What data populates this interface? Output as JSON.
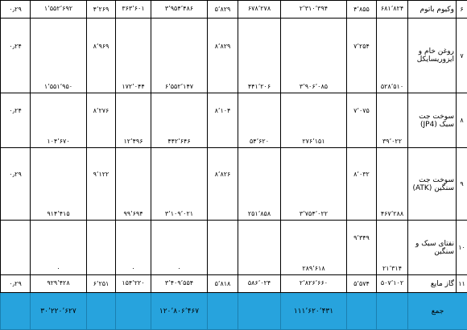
{
  "table": {
    "rows": [
      {
        "number": "۶",
        "name": "وکیوم باتوم",
        "cells": [
          "۶۸۱٬۸۲۴",
          "۴٬۸۵۵",
          "۲٬۳۱۰٬۳۹۴",
          "۶۷۸٬۲۷۸",
          "۵٬۸۲۹",
          "۳٬۹۵۴٬۴۸۶",
          "۳۶۳٬۶۰۱",
          "۴٬۲۶۹",
          "۱٬۵۵۲٬۶۹۲",
          "۰٫۲۹"
        ]
      },
      {
        "number": "۷",
        "name": "روغن خام و ایزوریسایکل",
        "cells": [
          "۵۲۸٬۵۱۰",
          "۷٬۲۵۴",
          "۳٬۹۰۶٬۰۸۵",
          "۴۴۱٬۲۰۶",
          "۸٬۸۲۹",
          "۶٬۵۵۲٬۱۴۷",
          "۱۷۲٬۰۴۴",
          "۸٬۹۶۹",
          "۱٬۵۵۱٬۹۵۰",
          "۰٫۲۴"
        ]
      },
      {
        "number": "۸",
        "name": "سوخت جت سبک (JP4)",
        "cells": [
          "۳۹٬۰۲۲",
          "۷٬۰۷۵",
          "۲۷۶٬۱۵۱",
          "۵۴٬۶۲۰",
          "۸٬۱۰۴",
          "۴۴۲٬۶۴۶",
          "۱۲٬۴۹۶",
          "۸٬۲۷۶",
          "۱۰۴٬۶۷۰",
          "۰٫۲۴"
        ]
      },
      {
        "number": "۹",
        "name": "سوخت جت سنگین (ATK)",
        "cells": [
          "۴۶۷٬۲۸۸",
          "۸٬۰۳۲",
          "۳٬۷۵۴٬۰۲۲",
          "۲۵۱٬۸۵۸",
          "۸٬۸۲۶",
          "۳٬۱۰۹٬۰۲۱",
          "۹۹٬۶۹۴",
          "۹٬۱۲۲",
          "۹۱۴٬۴۱۵",
          "۰٫۲۹"
        ]
      },
      {
        "number": "۱۰",
        "name": "نفتای سبک و سنگین",
        "cells": [
          "۲۱٬۳۱۴",
          "۹٬۳۴۹",
          "۲۸۹٬۶۱۸",
          null,
          null,
          "۰",
          "۰",
          null,
          "۰",
          null
        ]
      },
      {
        "number": "۱۱",
        "name": "گاز مایع",
        "cells": [
          "۵۰۷٬۱۰۲",
          "۵٬۵۷۴",
          "۲٬۸۲۶٬۶۶۰",
          "۵۸۶٬۰۲۴",
          "۵٬۸۱۸",
          "۳٬۴۰۹٬۵۵۴",
          "۱۵۴٬۲۲۰",
          "۶٬۲۵۱",
          "۹۲۹٬۴۲۸",
          "۰٫۲۹"
        ]
      }
    ],
    "total": {
      "label": "جمع",
      "cells": [
        null,
        null,
        "۱۱۱٬۶۲۰٬۴۳۱",
        null,
        null,
        "۱۲۰٬۸۰۶٬۴۶۷",
        null,
        null,
        "۳۰٬۲۲۰٬۶۲۷",
        null
      ]
    }
  }
}
